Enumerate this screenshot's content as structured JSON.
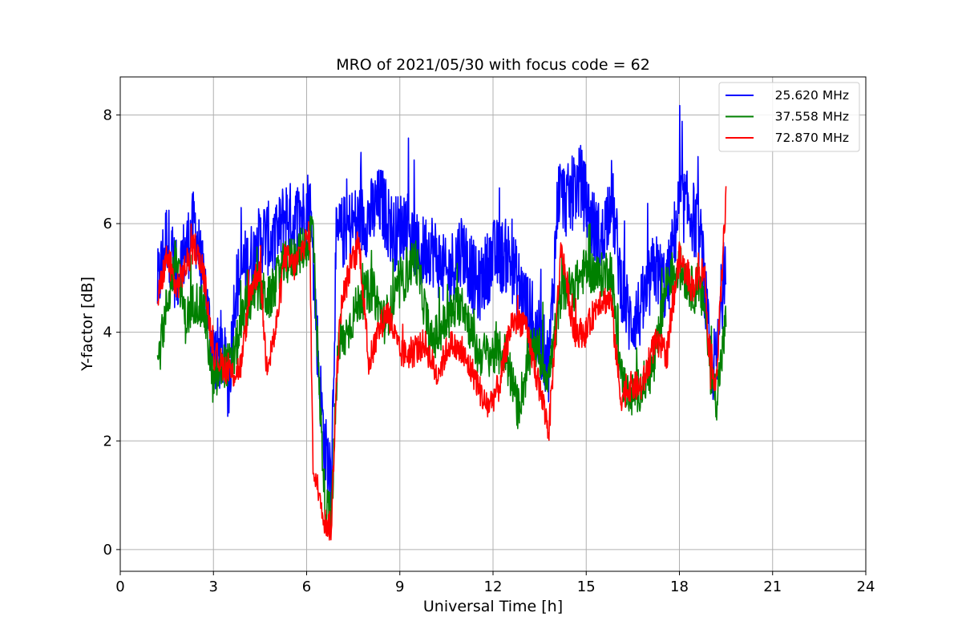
{
  "chart_data": {
    "type": "line",
    "title": "MRO of 2021/05/30 with focus code = 62",
    "xlabel": "Universal Time [h]",
    "ylabel": "Y-factor [dB]",
    "xlim": [
      0,
      24
    ],
    "ylim": [
      -0.4,
      8.7
    ],
    "xticks": [
      0,
      3,
      6,
      9,
      12,
      15,
      18,
      21,
      24
    ],
    "yticks": [
      0,
      2,
      4,
      6,
      8
    ],
    "grid": true,
    "legend_position": "top-right",
    "series": [
      {
        "name": "25.620 MHz",
        "color": "#0000ff",
        "noise": 0.7,
        "x": [
          1.2,
          1.5,
          1.8,
          2.1,
          2.4,
          2.7,
          3.0,
          3.3,
          3.5,
          3.7,
          4.0,
          4.3,
          4.6,
          5.0,
          5.3,
          5.6,
          5.9,
          6.1,
          6.2,
          6.4,
          6.6,
          6.8,
          6.95,
          7.1,
          7.5,
          8.0,
          8.4,
          8.8,
          9.2,
          9.6,
          10.0,
          10.5,
          11.0,
          11.5,
          12.0,
          12.5,
          13.0,
          13.4,
          13.8,
          14.1,
          14.4,
          14.8,
          15.2,
          15.5,
          15.8,
          16.1,
          16.4,
          16.8,
          17.2,
          17.6,
          18.0,
          18.4,
          18.7,
          19.0,
          19.2,
          19.5
        ],
        "y": [
          4.8,
          5.8,
          5.0,
          5.5,
          6.0,
          4.8,
          3.6,
          3.6,
          3.0,
          4.8,
          5.2,
          5.4,
          5.8,
          5.6,
          6.2,
          6.0,
          6.2,
          6.4,
          5.4,
          3.2,
          1.8,
          1.4,
          5.6,
          5.8,
          6.0,
          6.1,
          6.4,
          5.8,
          6.0,
          5.4,
          5.6,
          5.0,
          5.6,
          4.8,
          5.4,
          5.4,
          4.6,
          4.0,
          3.4,
          6.6,
          6.4,
          6.8,
          6.0,
          5.6,
          6.6,
          5.0,
          4.2,
          4.4,
          5.2,
          4.8,
          6.4,
          6.2,
          5.6,
          3.4,
          3.4,
          5.6
        ]
      },
      {
        "name": "37.558 MHz",
        "color": "#008000",
        "noise": 0.42,
        "x": [
          1.2,
          1.5,
          1.8,
          2.1,
          2.4,
          2.7,
          3.0,
          3.3,
          3.6,
          4.0,
          4.4,
          4.8,
          5.2,
          5.6,
          6.0,
          6.2,
          6.4,
          6.6,
          6.8,
          7.0,
          7.3,
          7.7,
          8.1,
          8.5,
          9.0,
          9.5,
          10.0,
          10.5,
          11.0,
          11.5,
          12.0,
          12.4,
          12.8,
          13.3,
          13.8,
          14.2,
          14.6,
          15.0,
          15.4,
          15.8,
          16.1,
          16.4,
          16.8,
          17.2,
          17.6,
          18.0,
          18.4,
          18.8,
          19.0,
          19.2,
          19.5
        ],
        "y": [
          3.4,
          4.5,
          5.4,
          4.2,
          4.6,
          4.4,
          3.0,
          3.4,
          3.4,
          4.4,
          4.8,
          4.6,
          5.2,
          5.4,
          5.6,
          6.0,
          3.0,
          0.8,
          0.6,
          3.6,
          4.0,
          4.6,
          4.8,
          4.2,
          4.8,
          5.4,
          3.8,
          4.2,
          4.6,
          3.6,
          3.6,
          3.6,
          2.6,
          3.8,
          3.2,
          4.8,
          4.8,
          5.2,
          5.0,
          5.2,
          3.2,
          2.8,
          3.0,
          3.4,
          5.0,
          5.2,
          4.8,
          4.6,
          3.2,
          2.8,
          4.2
        ]
      },
      {
        "name": "72.870 MHz",
        "color": "#ff0000",
        "noise": 0.28,
        "x": [
          1.2,
          1.5,
          1.8,
          2.1,
          2.4,
          2.7,
          3.0,
          3.3,
          3.6,
          3.9,
          4.2,
          4.5,
          4.7,
          5.0,
          5.3,
          5.6,
          5.9,
          6.1,
          6.2,
          6.4,
          6.6,
          6.8,
          6.95,
          7.1,
          7.4,
          7.7,
          8.0,
          8.3,
          8.6,
          9.0,
          9.4,
          9.8,
          10.2,
          10.6,
          11.0,
          11.4,
          11.8,
          12.2,
          12.6,
          13.0,
          13.4,
          13.8,
          14.2,
          14.6,
          15.0,
          15.4,
          15.8,
          16.1,
          16.4,
          16.8,
          17.2,
          17.6,
          18.0,
          18.4,
          18.8,
          19.0,
          19.2,
          19.4,
          19.5
        ],
        "y": [
          4.6,
          5.4,
          4.8,
          5.2,
          5.6,
          5.0,
          3.6,
          3.4,
          3.2,
          3.4,
          4.8,
          5.2,
          3.4,
          4.0,
          5.4,
          5.2,
          5.6,
          5.8,
          1.6,
          1.0,
          0.5,
          0.4,
          3.0,
          4.4,
          5.2,
          5.6,
          3.4,
          4.0,
          4.4,
          3.6,
          3.6,
          3.8,
          3.2,
          3.8,
          3.6,
          3.2,
          2.6,
          3.0,
          4.2,
          4.2,
          3.2,
          2.2,
          5.6,
          4.0,
          4.0,
          4.6,
          4.6,
          2.8,
          3.0,
          3.0,
          3.8,
          3.6,
          5.4,
          4.8,
          5.2,
          3.2,
          3.2,
          5.4,
          6.6
        ]
      }
    ]
  }
}
